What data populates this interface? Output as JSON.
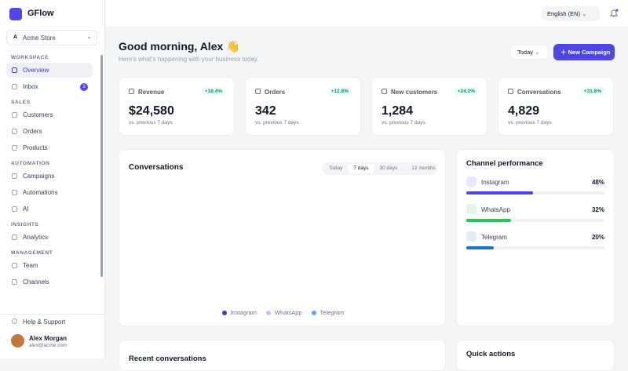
{
  "sidebar": {
    "brand": "GFlow",
    "store_initial": "A",
    "store": "Acme Store",
    "sections": [
      {
        "title": "WORKSPACE",
        "items": [
          {
            "label": "Overview"
          },
          {
            "label": "Inbox",
            "badge": 3
          }
        ]
      },
      {
        "title": "SALES",
        "items": [
          {
            "label": "Customers"
          },
          {
            "label": "Orders"
          },
          {
            "label": "Products"
          }
        ]
      },
      {
        "title": "AUTOMATION",
        "items": [
          {
            "label": "Campaigns"
          },
          {
            "label": "Automations"
          },
          {
            "label": "AI"
          }
        ]
      },
      {
        "title": "INSIGHTS",
        "items": [
          {
            "label": "Analytics"
          }
        ]
      },
      {
        "title": "MANAGEMENT",
        "items": [
          {
            "label": "Team"
          },
          {
            "label": "Channels"
          }
        ]
      }
    ],
    "help": "Help & Support",
    "user_name": "Alex Morgan",
    "user_email": "alex@acme.com"
  },
  "topbar": {
    "language": "English (EN)"
  },
  "header": {
    "greeting": "Good morning, Alex 👋",
    "subtitle": "Here's what's happening with your business today.",
    "period": "Today",
    "button": "New Campaign"
  },
  "stats": [
    {
      "label": "Revenue",
      "change": "+18.4%",
      "value": "$24,580",
      "note": "vs. previous 7 days"
    },
    {
      "label": "Orders",
      "change": "+12.8%",
      "value": "342",
      "note": "vs. previous 7 days"
    },
    {
      "label": "New customers",
      "change": "+24.2%",
      "value": "1,284",
      "note": "vs. previous 7 days"
    },
    {
      "label": "Conversations",
      "change": "+31.6%",
      "value": "4,829",
      "note": "vs. previous 7 days"
    }
  ],
  "conversations": {
    "title": "Conversations",
    "tabs": [
      "Today",
      "7 days",
      "30 days",
      "12 months"
    ],
    "legend": [
      {
        "name": "Instagram",
        "color": "#4338ca"
      },
      {
        "name": "WhatsApp",
        "color": "#d8b4fe"
      },
      {
        "name": "Telegram",
        "color": "#60a5fa"
      }
    ]
  },
  "channels": {
    "title": "Channel performance",
    "items": [
      {
        "name": "Instagram",
        "value": 48,
        "value_label": "48%",
        "color": "#4f46e5"
      },
      {
        "name": "WhatsApp",
        "value": 32,
        "value_label": "32%",
        "color": "#22c55e"
      },
      {
        "name": "Telegram",
        "value": 20,
        "value_label": "20%",
        "color": "#1d72c9"
      }
    ]
  },
  "bottom": {
    "recent": "Recent conversations",
    "quick": "Quick actions"
  }
}
